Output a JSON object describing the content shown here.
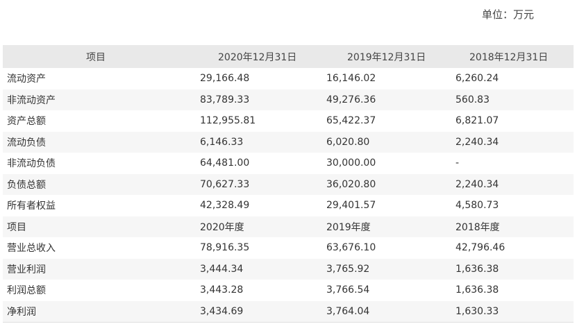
{
  "unit": "单位：万元",
  "header": {
    "item": "项目",
    "col1": "2020年12月31日",
    "col2": "2019年12月31日",
    "col3": "2018年12月31日"
  },
  "rows": [
    {
      "label": "流动资产",
      "v1": "29,166.48",
      "v2": "16,146.02",
      "v3": "6,260.24"
    },
    {
      "label": "非流动资产",
      "v1": "83,789.33",
      "v2": "49,276.36",
      "v3": "560.83"
    },
    {
      "label": "资产总额",
      "v1": "112,955.81",
      "v2": "65,422.37",
      "v3": "6,821.07"
    },
    {
      "label": "流动负债",
      "v1": "6,146.33",
      "v2": "6,020.80",
      "v3": "2,240.34"
    },
    {
      "label": "非流动负债",
      "v1": "64,481.00",
      "v2": "30,000.00",
      "v3": "-"
    },
    {
      "label": "负债总额",
      "v1": "70,627.33",
      "v2": "36,020.80",
      "v3": "2,240.34"
    },
    {
      "label": "所有者权益",
      "v1": "42,328.49",
      "v2": "29,401.57",
      "v3": "4,580.73"
    },
    {
      "label": "项目",
      "v1": "2020年度",
      "v2": "2019年度",
      "v3": "2018年度"
    },
    {
      "label": "营业总收入",
      "v1": "78,916.35",
      "v2": "63,676.10",
      "v3": "42,796.46"
    },
    {
      "label": "营业利润",
      "v1": "3,444.34",
      "v2": "3,765.92",
      "v3": "1,636.38"
    },
    {
      "label": "利润总额",
      "v1": "3,443.28",
      "v2": "3,766.54",
      "v3": "1,636.38"
    },
    {
      "label": "净利润",
      "v1": "3,434.69",
      "v2": "3,764.04",
      "v3": "1,630.33"
    }
  ]
}
